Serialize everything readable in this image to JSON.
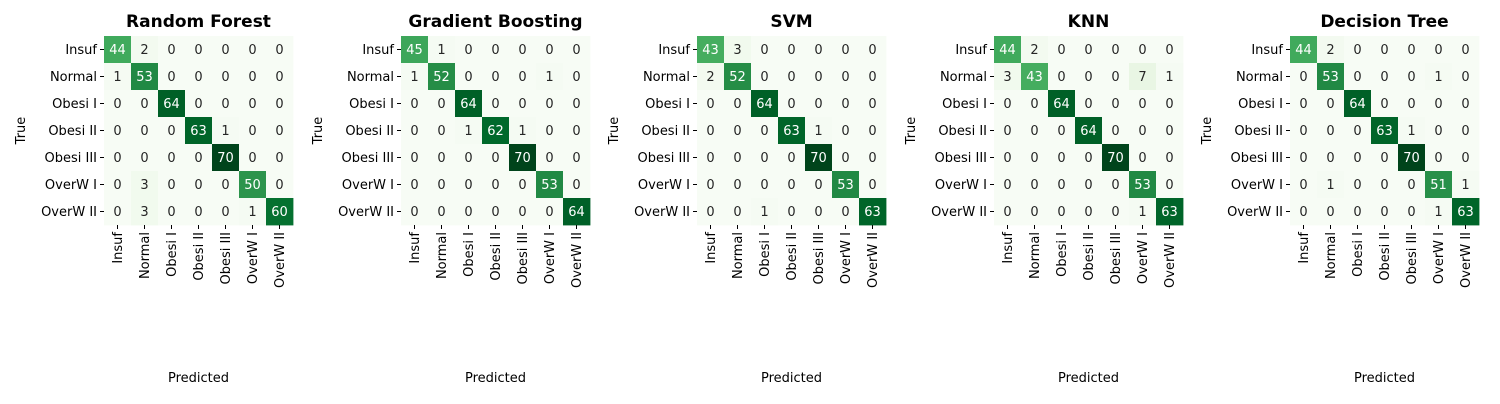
{
  "chart_data": [
    {
      "type": "heatmap",
      "title": "Random Forest",
      "xlabel": "Predicted",
      "ylabel": "True",
      "labels": [
        "Insuf",
        "Normal",
        "Obesi I",
        "Obesi II",
        "Obesi III",
        "OverW I",
        "OverW II"
      ],
      "matrix": [
        [
          44,
          2,
          0,
          0,
          0,
          0,
          0
        ],
        [
          1,
          53,
          0,
          0,
          0,
          0,
          0
        ],
        [
          0,
          0,
          64,
          0,
          0,
          0,
          0
        ],
        [
          0,
          0,
          0,
          63,
          1,
          0,
          0
        ],
        [
          0,
          0,
          0,
          0,
          70,
          0,
          0
        ],
        [
          0,
          3,
          0,
          0,
          0,
          50,
          0
        ],
        [
          0,
          3,
          0,
          0,
          0,
          1,
          60
        ]
      ],
      "colormap": "Greens",
      "grid": false,
      "legend": "none"
    },
    {
      "type": "heatmap",
      "title": "Gradient Boosting",
      "xlabel": "Predicted",
      "ylabel": "True",
      "labels": [
        "Insuf",
        "Normal",
        "Obesi I",
        "Obesi II",
        "Obesi III",
        "OverW I",
        "OverW II"
      ],
      "matrix": [
        [
          45,
          1,
          0,
          0,
          0,
          0,
          0
        ],
        [
          1,
          52,
          0,
          0,
          0,
          1,
          0
        ],
        [
          0,
          0,
          64,
          0,
          0,
          0,
          0
        ],
        [
          0,
          0,
          1,
          62,
          1,
          0,
          0
        ],
        [
          0,
          0,
          0,
          0,
          70,
          0,
          0
        ],
        [
          0,
          0,
          0,
          0,
          0,
          53,
          0
        ],
        [
          0,
          0,
          0,
          0,
          0,
          0,
          64
        ]
      ],
      "colormap": "Greens",
      "grid": false,
      "legend": "none"
    },
    {
      "type": "heatmap",
      "title": "SVM",
      "xlabel": "Predicted",
      "ylabel": "True",
      "labels": [
        "Insuf",
        "Normal",
        "Obesi I",
        "Obesi II",
        "Obesi III",
        "OverW I",
        "OverW II"
      ],
      "matrix": [
        [
          43,
          3,
          0,
          0,
          0,
          0,
          0
        ],
        [
          2,
          52,
          0,
          0,
          0,
          0,
          0
        ],
        [
          0,
          0,
          64,
          0,
          0,
          0,
          0
        ],
        [
          0,
          0,
          0,
          63,
          1,
          0,
          0
        ],
        [
          0,
          0,
          0,
          0,
          70,
          0,
          0
        ],
        [
          0,
          0,
          0,
          0,
          0,
          53,
          0
        ],
        [
          0,
          0,
          1,
          0,
          0,
          0,
          63
        ]
      ],
      "colormap": "Greens",
      "grid": false,
      "legend": "none"
    },
    {
      "type": "heatmap",
      "title": "KNN",
      "xlabel": "Predicted",
      "ylabel": "True",
      "labels": [
        "Insuf",
        "Normal",
        "Obesi I",
        "Obesi II",
        "Obesi III",
        "OverW I",
        "OverW II"
      ],
      "matrix": [
        [
          44,
          2,
          0,
          0,
          0,
          0,
          0
        ],
        [
          3,
          43,
          0,
          0,
          0,
          7,
          1
        ],
        [
          0,
          0,
          64,
          0,
          0,
          0,
          0
        ],
        [
          0,
          0,
          0,
          64,
          0,
          0,
          0
        ],
        [
          0,
          0,
          0,
          0,
          70,
          0,
          0
        ],
        [
          0,
          0,
          0,
          0,
          0,
          53,
          0
        ],
        [
          0,
          0,
          0,
          0,
          0,
          1,
          63
        ]
      ],
      "colormap": "Greens",
      "grid": false,
      "legend": "none"
    },
    {
      "type": "heatmap",
      "title": "Decision Tree",
      "xlabel": "Predicted",
      "ylabel": "True",
      "labels": [
        "Insuf",
        "Normal",
        "Obesi I",
        "Obesi II",
        "Obesi III",
        "OverW I",
        "OverW II"
      ],
      "matrix": [
        [
          44,
          2,
          0,
          0,
          0,
          0,
          0
        ],
        [
          0,
          53,
          0,
          0,
          0,
          1,
          0
        ],
        [
          0,
          0,
          64,
          0,
          0,
          0,
          0
        ],
        [
          0,
          0,
          0,
          63,
          1,
          0,
          0
        ],
        [
          0,
          0,
          0,
          0,
          70,
          0,
          0
        ],
        [
          0,
          1,
          0,
          0,
          0,
          51,
          1
        ],
        [
          0,
          0,
          0,
          0,
          0,
          1,
          63
        ]
      ],
      "colormap": "Greens",
      "grid": false,
      "legend": "none"
    }
  ],
  "colors": {
    "cell_low": "#f7fcf5",
    "cell_mid": "#74c476",
    "cell_high": "#00441b",
    "text_dark": "#262626",
    "text_light": "#ffffff",
    "tick": "#000000"
  }
}
